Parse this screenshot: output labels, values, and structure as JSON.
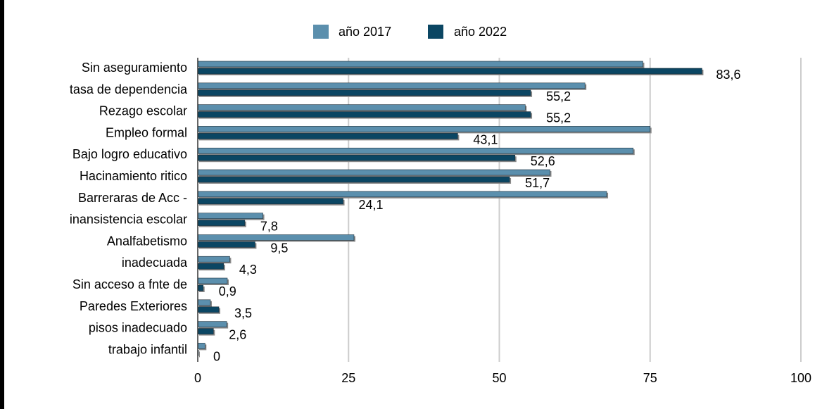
{
  "chart_data": {
    "type": "bar",
    "orientation": "horizontal",
    "title": "",
    "xlabel": "",
    "ylabel": "",
    "xlim": [
      0,
      100
    ],
    "x_ticks": [
      "0",
      "25",
      "50",
      "75",
      "100"
    ],
    "grid": true,
    "legend_position": "top",
    "categories": [
      "Sin aseguramiento",
      "tasa de dependencia",
      "Rezago escolar",
      "Empleo formal",
      "Bajo  logro educativo",
      "Hacinamiento ritico",
      "Barreraras  de Acc -",
      "inansistencia escolar",
      "Analfabetismo",
      "inadecuada",
      "Sin acceso a fnte de",
      "Paredes Exteriores",
      "pisos inadecuado",
      "trabajo infantil"
    ],
    "series": [
      {
        "name": "año 2017",
        "color": "#5b8fad",
        "values": [
          73.8,
          64.2,
          54.3,
          75.0,
          72.2,
          58.4,
          67.8,
          10.8,
          25.9,
          5.3,
          4.9,
          2.1,
          4.8,
          1.2
        ]
      },
      {
        "name": "año 2022",
        "color": "#0b4663",
        "values": [
          83.6,
          55.2,
          55.2,
          43.1,
          52.6,
          51.7,
          24.1,
          7.8,
          9.5,
          4.3,
          0.9,
          3.5,
          2.6,
          0
        ],
        "labels": [
          "83,6",
          "55,2",
          "55,2",
          "43,1",
          "52,6",
          "51,7",
          "24,1",
          "7,8",
          "9,5",
          "4,3",
          "0,9",
          "3,5",
          "2,6",
          "0"
        ]
      }
    ]
  }
}
